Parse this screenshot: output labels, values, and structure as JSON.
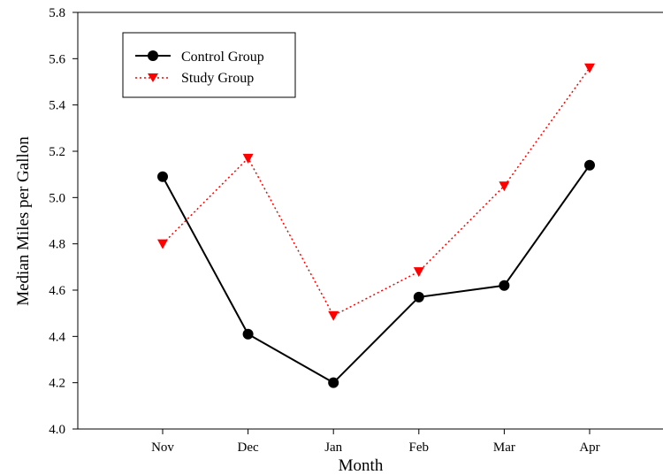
{
  "chart_data": {
    "type": "line",
    "title": "",
    "xlabel": "Month",
    "ylabel": "Median Miles per Gallon",
    "categories": [
      "Nov",
      "Dec",
      "Jan",
      "Feb",
      "Mar",
      "Apr"
    ],
    "ylim": [
      4.0,
      5.8
    ],
    "yticks": [
      "4.0",
      "4.2",
      "4.4",
      "4.6",
      "4.8",
      "5.0",
      "5.2",
      "5.4",
      "5.6",
      "5.8"
    ],
    "grid": false,
    "legend": "top-left",
    "series": [
      {
        "name": "Control Group",
        "values": [
          5.09,
          4.41,
          4.2,
          4.57,
          4.62,
          5.14
        ],
        "color": "#000000",
        "line_style": "solid",
        "marker": "circle"
      },
      {
        "name": "Study Group",
        "values": [
          4.8,
          5.17,
          4.49,
          4.68,
          5.05,
          5.56
        ],
        "color": "#ff0000",
        "line_style": "dotted",
        "marker": "triangle-down"
      }
    ]
  }
}
